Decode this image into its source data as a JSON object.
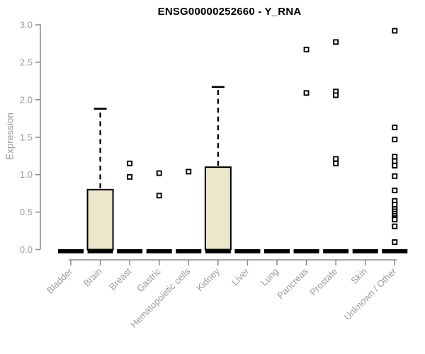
{
  "chart_data": {
    "type": "boxplot",
    "title": "ENSG00000252660 - Y_RNA",
    "ylabel": "Expression",
    "xlabel": "",
    "ylim": [
      0.0,
      3.0
    ],
    "yticks": [
      0.0,
      0.5,
      1.0,
      1.5,
      2.0,
      2.5,
      3.0
    ],
    "grid": false,
    "legend": "none",
    "categories": [
      "Bladder",
      "Brain",
      "Breast",
      "Gastric",
      "Hematopoietic cells",
      "Kidney",
      "Liver",
      "Lung",
      "Pancreas",
      "Prostate",
      "Skin",
      "Unknown / Other"
    ],
    "boxes": [
      {
        "category": "Bladder",
        "median": 0,
        "q1": 0,
        "q3": 0,
        "whisker_low": 0,
        "whisker_high": 0,
        "outliers": []
      },
      {
        "category": "Brain",
        "median": 0,
        "q1": 0,
        "q3": 0.8,
        "whisker_low": 0,
        "whisker_high": 1.88,
        "outliers": []
      },
      {
        "category": "Breast",
        "median": 0,
        "q1": 0,
        "q3": 0,
        "whisker_low": 0,
        "whisker_high": 0,
        "outliers": [
          1.15,
          0.97
        ]
      },
      {
        "category": "Gastric",
        "median": 0,
        "q1": 0,
        "q3": 0,
        "whisker_low": 0,
        "whisker_high": 0,
        "outliers": [
          1.02,
          0.72
        ]
      },
      {
        "category": "Hematopoietic cells",
        "median": 0,
        "q1": 0,
        "q3": 0,
        "whisker_low": 0,
        "whisker_high": 0,
        "outliers": [
          1.04
        ]
      },
      {
        "category": "Kidney",
        "median": 0,
        "q1": 0,
        "q3": 1.1,
        "whisker_low": 0,
        "whisker_high": 2.17,
        "outliers": []
      },
      {
        "category": "Liver",
        "median": 0,
        "q1": 0,
        "q3": 0,
        "whisker_low": 0,
        "whisker_high": 0,
        "outliers": []
      },
      {
        "category": "Lung",
        "median": 0,
        "q1": 0,
        "q3": 0,
        "whisker_low": 0,
        "whisker_high": 0,
        "outliers": []
      },
      {
        "category": "Pancreas",
        "median": 0,
        "q1": 0,
        "q3": 0,
        "whisker_low": 0,
        "whisker_high": 0,
        "outliers": [
          2.67,
          2.09
        ]
      },
      {
        "category": "Prostate",
        "median": 0,
        "q1": 0,
        "q3": 0,
        "whisker_low": 0,
        "whisker_high": 0,
        "outliers": [
          2.77,
          2.11,
          2.06,
          1.21,
          1.15
        ]
      },
      {
        "category": "Skin",
        "median": 0,
        "q1": 0,
        "q3": 0,
        "whisker_low": 0,
        "whisker_high": 0,
        "outliers": []
      },
      {
        "category": "Unknown / Other",
        "median": 0,
        "q1": 0,
        "q3": 0,
        "whisker_low": 0,
        "whisker_high": 0,
        "outliers": [
          2.92,
          1.63,
          1.47,
          1.24,
          1.18,
          1.12,
          0.98,
          0.79,
          0.65,
          0.6,
          0.54,
          0.51,
          0.48,
          0.45,
          0.42,
          0.4,
          0.31,
          0.1
        ]
      }
    ],
    "colors": {
      "box_fill": "#ece7cb",
      "box_border": "#000000",
      "median": "#000000",
      "whisker": "#000000",
      "outlier_stroke": "#000000",
      "outlier_fill": "#ffffff",
      "axis_line": "#878787",
      "tick_label": "#9b9b9b",
      "title": "#000000"
    }
  }
}
